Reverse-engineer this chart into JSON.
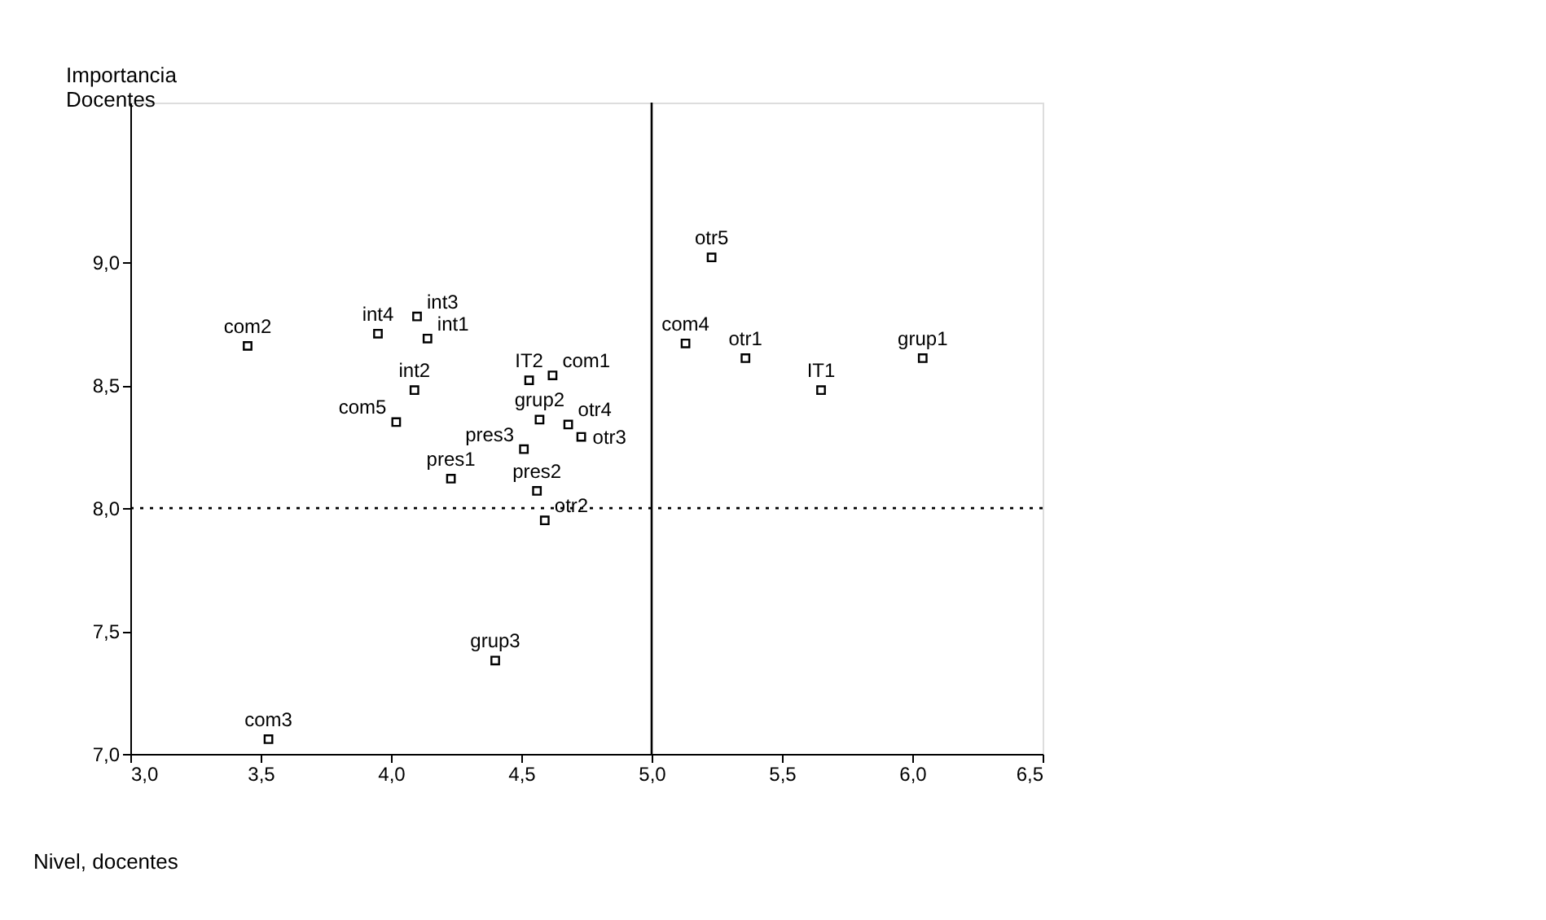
{
  "chart_data": {
    "type": "scatter",
    "xlabel": "Nivel, docentes",
    "ylabel": "Importancia Docentes",
    "x": [
      3.45,
      3.95,
      4.1,
      4.14,
      4.09,
      4.02,
      4.53,
      4.62,
      4.57,
      4.68,
      4.73,
      4.51,
      4.23,
      4.56,
      4.59,
      5.23,
      5.13,
      5.36,
      5.65,
      6.04,
      4.4,
      3.53
    ],
    "series": [
      {
        "color": "#000000",
        "values": [
          8.66,
          8.71,
          8.78,
          8.69,
          8.48,
          8.35,
          8.52,
          8.54,
          8.36,
          8.34,
          8.29,
          8.24,
          8.12,
          8.07,
          7.95,
          9.02,
          8.67,
          8.61,
          8.48,
          8.61,
          7.38,
          7.06
        ]
      }
    ],
    "marker": "square",
    "grid": false,
    "xlim": [
      3.0,
      6.5
    ],
    "ylim": [
      7.0,
      9.65
    ],
    "xticks": [
      {
        "value": 3.0,
        "label": "3,0"
      },
      {
        "value": 3.5,
        "label": "3,5"
      },
      {
        "value": 4.0,
        "label": "4,0"
      },
      {
        "value": 4.5,
        "label": "4,5"
      },
      {
        "value": 5.0,
        "label": "5,0"
      },
      {
        "value": 5.5,
        "label": "5,5"
      },
      {
        "value": 6.0,
        "label": "6,0"
      },
      {
        "value": 6.5,
        "label": "6,5"
      }
    ],
    "yticks": [
      {
        "value": 7.0,
        "label": "7,0"
      },
      {
        "value": 7.5,
        "label": "7,5"
      },
      {
        "value": 8.0,
        "label": "8,0"
      },
      {
        "value": 8.5,
        "label": "8,5"
      },
      {
        "value": 9.0,
        "label": "9,0"
      }
    ],
    "ref_lines": [
      {
        "axis": "y",
        "value": 8.0,
        "line_style": "dotted",
        "color": "#000000"
      },
      {
        "axis": "x",
        "value": 5.0,
        "line_style": "solid",
        "color": "#000000"
      }
    ],
    "annotations": [
      {
        "text": "com2",
        "x": 3.45,
        "y": 8.66
      },
      {
        "text": "int4",
        "x": 3.95,
        "y": 8.71
      },
      {
        "text": "int3",
        "x": 4.1,
        "y": 8.78
      },
      {
        "text": "int1",
        "x": 4.14,
        "y": 8.69
      },
      {
        "text": "int2",
        "x": 4.09,
        "y": 8.48
      },
      {
        "text": "com5",
        "x": 4.02,
        "y": 8.35
      },
      {
        "text": "IT2",
        "x": 4.53,
        "y": 8.52
      },
      {
        "text": "com1",
        "x": 4.62,
        "y": 8.54
      },
      {
        "text": "grup2",
        "x": 4.57,
        "y": 8.36
      },
      {
        "text": "otr4",
        "x": 4.68,
        "y": 8.34
      },
      {
        "text": "otr3",
        "x": 4.73,
        "y": 8.29
      },
      {
        "text": "pres3",
        "x": 4.51,
        "y": 8.24
      },
      {
        "text": "pres1",
        "x": 4.23,
        "y": 8.12
      },
      {
        "text": "pres2",
        "x": 4.56,
        "y": 8.07
      },
      {
        "text": "otr2",
        "x": 4.59,
        "y": 7.95
      },
      {
        "text": "otr5",
        "x": 5.23,
        "y": 9.02
      },
      {
        "text": "com4",
        "x": 5.13,
        "y": 8.67
      },
      {
        "text": "otr1",
        "x": 5.36,
        "y": 8.61
      },
      {
        "text": "IT1",
        "x": 5.65,
        "y": 8.48
      },
      {
        "text": "grup1",
        "x": 6.04,
        "y": 8.61
      },
      {
        "text": "grup3",
        "x": 4.4,
        "y": 7.38
      },
      {
        "text": "com3",
        "x": 3.53,
        "y": 7.06
      }
    ]
  }
}
